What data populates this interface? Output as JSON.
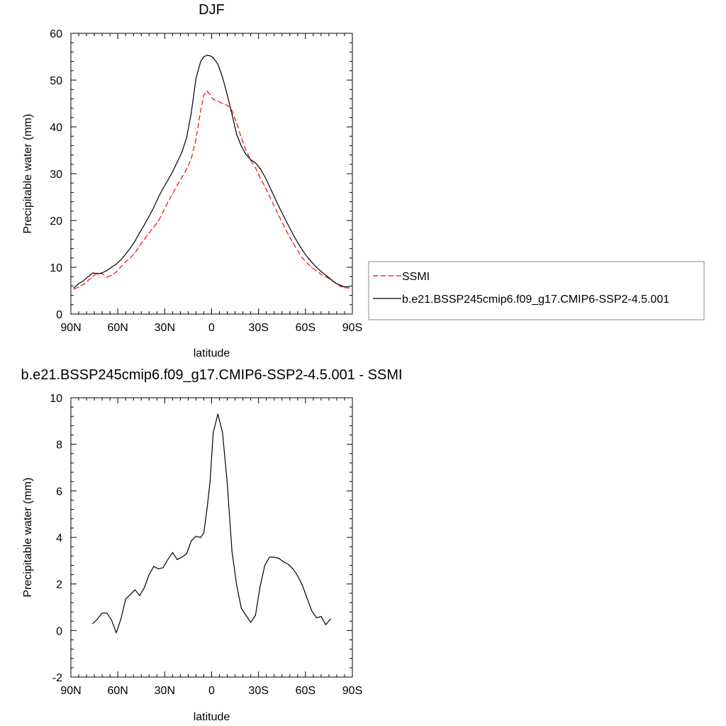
{
  "chart_data": [
    {
      "type": "line",
      "title": "DJF",
      "xlabel": "latitude",
      "ylabel": "Precipitable water (mm)",
      "xlim": [
        -90,
        90
      ],
      "ylim": [
        0,
        60
      ],
      "x_tick_values": [
        -90,
        -60,
        -30,
        0,
        30,
        60,
        90
      ],
      "x_tick_labels": [
        "90N",
        "60N",
        "30N",
        "0",
        "30S",
        "60S",
        "90S"
      ],
      "y_tick_values": [
        0,
        10,
        20,
        30,
        40,
        50,
        60
      ],
      "y_tick_labels": [
        "0",
        "10",
        "20",
        "30",
        "40",
        "50",
        "60"
      ],
      "legend_position": "right",
      "series": [
        {
          "name": "SSMI",
          "color": "#ff0000",
          "dash": true,
          "x": [
            -88,
            -85,
            -82,
            -79,
            -76,
            -73,
            -70,
            -67,
            -64,
            -61,
            -58,
            -55,
            -52,
            -49,
            -46,
            -43,
            -40,
            -37,
            -34,
            -31,
            -28,
            -25,
            -22,
            -19,
            -16,
            -13,
            -10,
            -7,
            -5,
            -3,
            -1,
            1,
            4,
            7,
            10,
            13,
            16,
            19,
            22,
            25,
            28,
            31,
            34,
            37,
            40,
            43,
            46,
            49,
            52,
            55,
            58,
            61,
            64,
            67,
            70,
            73,
            76,
            79,
            82,
            85,
            88
          ],
          "values": [
            5.3,
            5.8,
            6.3,
            7.2,
            8.1,
            8.8,
            8.6,
            7.9,
            8.3,
            9.0,
            10.1,
            11.2,
            12.0,
            13.1,
            14.6,
            16.0,
            17.3,
            18.6,
            19.9,
            21.9,
            23.9,
            25.7,
            27.6,
            29.2,
            31.0,
            33.2,
            37.4,
            43.6,
            46.8,
            47.7,
            46.9,
            45.9,
            45.5,
            45.0,
            44.6,
            43.5,
            40.8,
            37.7,
            35.0,
            32.9,
            31.3,
            29.1,
            27.3,
            25.2,
            23.1,
            21.0,
            19.0,
            17.0,
            15.2,
            13.6,
            12.0,
            10.9,
            10.0,
            9.2,
            8.5,
            8.0,
            7.4,
            6.7,
            6.0,
            5.6,
            5.6
          ]
        },
        {
          "name": "b.e21.BSSP245cmip6.f09_g17.CMIP6-SSP2-4.5.001",
          "color": "#000000",
          "dash": false,
          "x": [
            -88,
            -85,
            -82,
            -79,
            -76,
            -73,
            -70,
            -67,
            -64,
            -61,
            -58,
            -55,
            -52,
            -49,
            -46,
            -43,
            -40,
            -37,
            -34,
            -31,
            -28,
            -25,
            -22,
            -19,
            -16,
            -13,
            -10,
            -7,
            -5,
            -3,
            -1,
            1,
            4,
            7,
            10,
            13,
            16,
            19,
            22,
            25,
            28,
            31,
            34,
            37,
            40,
            43,
            46,
            49,
            52,
            55,
            58,
            61,
            64,
            67,
            70,
            73,
            76,
            79,
            82,
            85,
            88
          ],
          "values": [
            5.6,
            6.5,
            7.1,
            8.0,
            8.8,
            8.6,
            8.8,
            9.3,
            10.0,
            10.7,
            11.6,
            12.8,
            14.1,
            15.6,
            17.4,
            19.1,
            20.9,
            22.8,
            25.0,
            26.9,
            28.6,
            30.4,
            32.5,
            34.6,
            37.7,
            43.0,
            50.4,
            54.0,
            55.0,
            55.3,
            55.2,
            54.8,
            53.4,
            50.6,
            46.8,
            42.7,
            38.4,
            35.9,
            34.1,
            33.0,
            32.3,
            31.1,
            29.4,
            27.3,
            25.1,
            23.0,
            21.0,
            19.0,
            17.1,
            15.3,
            13.7,
            12.3,
            11.1,
            10.0,
            9.1,
            8.3,
            7.5,
            6.7,
            6.2,
            5.8,
            5.9
          ]
        }
      ]
    },
    {
      "type": "line",
      "title": "b.e21.BSSP245cmip6.f09_g17.CMIP6-SSP2-4.5.001 - SSMI",
      "xlabel": "latitude",
      "ylabel": "Precipitable water (mm)",
      "xlim": [
        -90,
        90
      ],
      "ylim": [
        -2,
        10
      ],
      "x_tick_values": [
        -90,
        -60,
        -30,
        0,
        30,
        60,
        90
      ],
      "x_tick_labels": [
        "90N",
        "60N",
        "30N",
        "0",
        "30S",
        "60S",
        "90S"
      ],
      "y_tick_values": [
        -2,
        0,
        2,
        4,
        6,
        8,
        10
      ],
      "y_tick_labels": [
        "-2",
        "0",
        "2",
        "4",
        "6",
        "8",
        "10"
      ],
      "series": [
        {
          "color": "#000000",
          "x": [
            -76,
            -73,
            -70,
            -67,
            -64,
            -61,
            -58,
            -55,
            -52,
            -49,
            -46,
            -43,
            -40,
            -37,
            -34,
            -31,
            -28,
            -25,
            -22,
            -19,
            -16,
            -13,
            -10,
            -7,
            -5,
            -3,
            -1,
            1,
            4,
            7,
            10,
            13,
            16,
            19,
            22,
            25,
            28,
            31,
            34,
            37,
            40,
            43,
            46,
            49,
            52,
            55,
            58,
            61,
            64,
            67,
            70,
            73,
            76
          ],
          "values": [
            0.3,
            0.5,
            0.75,
            0.75,
            0.45,
            -0.1,
            0.5,
            1.35,
            1.55,
            1.75,
            1.5,
            1.85,
            2.4,
            2.75,
            2.65,
            2.7,
            3.05,
            3.35,
            3.05,
            3.15,
            3.3,
            3.85,
            4.05,
            4.0,
            4.2,
            5.2,
            6.4,
            8.5,
            9.3,
            8.5,
            6.3,
            3.4,
            1.95,
            0.95,
            0.65,
            0.35,
            0.65,
            1.9,
            2.8,
            3.15,
            3.15,
            3.1,
            2.95,
            2.85,
            2.65,
            2.35,
            1.95,
            1.4,
            0.85,
            0.55,
            0.6,
            0.25,
            0.5
          ]
        }
      ]
    }
  ]
}
